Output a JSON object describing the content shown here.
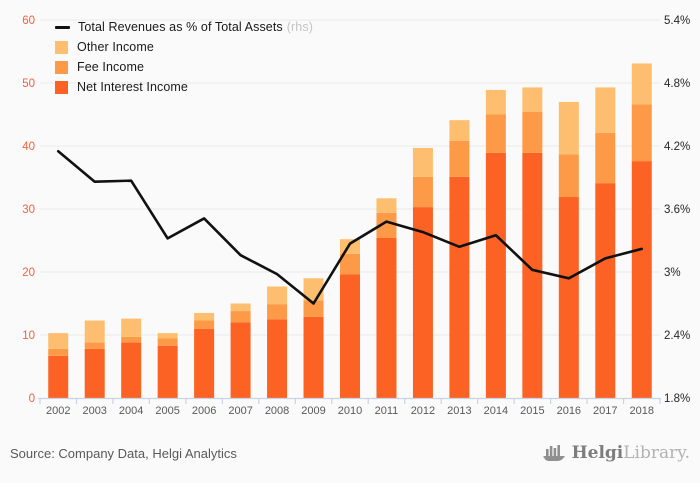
{
  "chart_data": {
    "type": "bar",
    "subtype": "stacked-bars-with-line-overlay",
    "title": "",
    "categories": [
      "2002",
      "2003",
      "2004",
      "2005",
      "2006",
      "2007",
      "2008",
      "2009",
      "2010",
      "2011",
      "2012",
      "2013",
      "2014",
      "2015",
      "2016",
      "2017",
      "2018"
    ],
    "series": [
      {
        "name": "Net Interest Income",
        "color": "#fb6224",
        "values": [
          6.7,
          7.8,
          8.8,
          8.3,
          11.0,
          12.0,
          12.5,
          12.9,
          19.6,
          25.4,
          30.3,
          35.1,
          38.9,
          38.9,
          31.9,
          34.1,
          37.6
        ]
      },
      {
        "name": "Fee Income",
        "color": "#fd9a47",
        "values": [
          1.1,
          1.0,
          0.9,
          1.2,
          1.3,
          1.8,
          2.4,
          2.6,
          3.3,
          4.0,
          4.8,
          5.7,
          6.1,
          6.5,
          6.8,
          8.0,
          9.0
        ]
      },
      {
        "name": "Other Income",
        "color": "#fdbf6f",
        "values": [
          2.5,
          3.5,
          2.9,
          0.8,
          1.2,
          1.2,
          2.8,
          3.5,
          2.3,
          2.3,
          4.6,
          3.3,
          3.9,
          3.9,
          8.3,
          7.2,
          6.5
        ]
      }
    ],
    "line_series": {
      "name": "Total Revenues as % of Total Assets",
      "axis_note": "(rhs)",
      "color": "#111111",
      "values_pct": [
        4.15,
        3.86,
        3.87,
        3.32,
        3.51,
        3.16,
        2.98,
        2.7,
        3.27,
        3.48,
        3.38,
        3.24,
        3.35,
        3.02,
        2.94,
        3.13,
        3.22
      ]
    },
    "left_axis": {
      "min": 0,
      "max": 60,
      "ticks": [
        0,
        10,
        20,
        30,
        40,
        50,
        60
      ],
      "label_color": "#f4613b"
    },
    "right_axis": {
      "min": 1.8,
      "max": 5.4,
      "ticks": [
        "1.8%",
        "2.4%",
        "3%",
        "3.6%",
        "4.2%",
        "4.8%",
        "5.4%"
      ],
      "label_color": "#262626"
    },
    "x_axis": {
      "label_color": "#595959",
      "axis_color": "#c9d3e3"
    },
    "grid": {
      "on": true,
      "color": "#e9e9e9"
    },
    "legend": [
      {
        "type": "line",
        "label": "Total Revenues as % of Total Assets",
        "note": "(rhs)",
        "color": "#111111"
      },
      {
        "type": "swatch",
        "label": "Other Income",
        "color": "#fdbf6f"
      },
      {
        "type": "swatch",
        "label": "Fee Income",
        "color": "#fd9a47"
      },
      {
        "type": "swatch",
        "label": "Net Interest Income",
        "color": "#fb6224"
      }
    ],
    "legend_position": "top-left-inside"
  },
  "source": {
    "label": "Source: Company Data, Helgi Analytics"
  },
  "logo": {
    "bold": "Helgi",
    "light": "Library."
  }
}
